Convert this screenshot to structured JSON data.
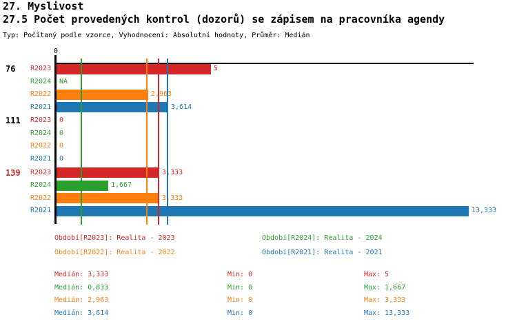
{
  "header": {
    "title": "27. Myslivost",
    "subtitle": "27.5 Počet provedených kontrol (dozorů) se zápisem na pracovníka agendy",
    "meta": "Typ: Počítaný podle vzorce, Vyhodnocení: Absolutní hodnoty, Průměr: Medián"
  },
  "colors": {
    "R2023": "#d62728",
    "R2024": "#2ca02c",
    "R2022": "#ff7f0e",
    "R2021": "#1f77b4",
    "axis": "#000000",
    "highlight_group_label": "#d62728",
    "normal_group_label": "#000000"
  },
  "chart_data": {
    "type": "bar",
    "orientation": "horizontal",
    "x_axis": {
      "origin_label": "0",
      "min": 0,
      "max_extent": 13.5,
      "grid": false
    },
    "groups": [
      {
        "label": "76",
        "highlight": false,
        "rows": [
          {
            "series": "R2023",
            "value": 5,
            "display": "5"
          },
          {
            "series": "R2024",
            "value": null,
            "display": "NA"
          },
          {
            "series": "R2022",
            "value": 2.963,
            "display": "2,963"
          },
          {
            "series": "R2021",
            "value": 3.614,
            "display": "3,614"
          }
        ]
      },
      {
        "label": "111",
        "highlight": false,
        "rows": [
          {
            "series": "R2023",
            "value": 0,
            "display": "0"
          },
          {
            "series": "R2024",
            "value": 0,
            "display": "0"
          },
          {
            "series": "R2022",
            "value": 0,
            "display": "0"
          },
          {
            "series": "R2021",
            "value": 0,
            "display": "0"
          }
        ]
      },
      {
        "label": "139",
        "highlight": true,
        "rows": [
          {
            "series": "R2023",
            "value": 3.333,
            "display": "3,333"
          },
          {
            "series": "R2024",
            "value": 1.667,
            "display": "1,667"
          },
          {
            "series": "R2022",
            "value": 3.333,
            "display": "3,333"
          },
          {
            "series": "R2021",
            "value": 13.333,
            "display": "13,333"
          }
        ]
      }
    ],
    "median_lines": [
      {
        "series": "R2024",
        "value": 0.833
      },
      {
        "series": "R2022",
        "value": 2.963
      },
      {
        "series": "R2023",
        "value": 3.333
      },
      {
        "series": "R2021",
        "value": 3.614
      }
    ]
  },
  "legend": {
    "entries": [
      {
        "series": "R2023",
        "label": "Období[R2023]: Realita - 2023"
      },
      {
        "series": "R2024",
        "label": "Období[R2024]: Realita - 2024"
      },
      {
        "series": "R2022",
        "label": "Období[R2022]: Realita - 2022"
      },
      {
        "series": "R2021",
        "label": "Období[R2021]: Realita - 2021"
      }
    ]
  },
  "stats": {
    "rows": [
      {
        "series": "R2023",
        "median": "Medián: 3,333",
        "min": "Min: 0",
        "max": "Max: 5"
      },
      {
        "series": "R2024",
        "median": "Medián: 0,833",
        "min": "Min: 0",
        "max": "Max: 1,667"
      },
      {
        "series": "R2022",
        "median": "Medián: 2,963",
        "min": "Min: 0",
        "max": "Max: 3,333"
      },
      {
        "series": "R2021",
        "median": "Medián: 3,614",
        "min": "Min: 0",
        "max": "Max: 13,333"
      }
    ]
  }
}
